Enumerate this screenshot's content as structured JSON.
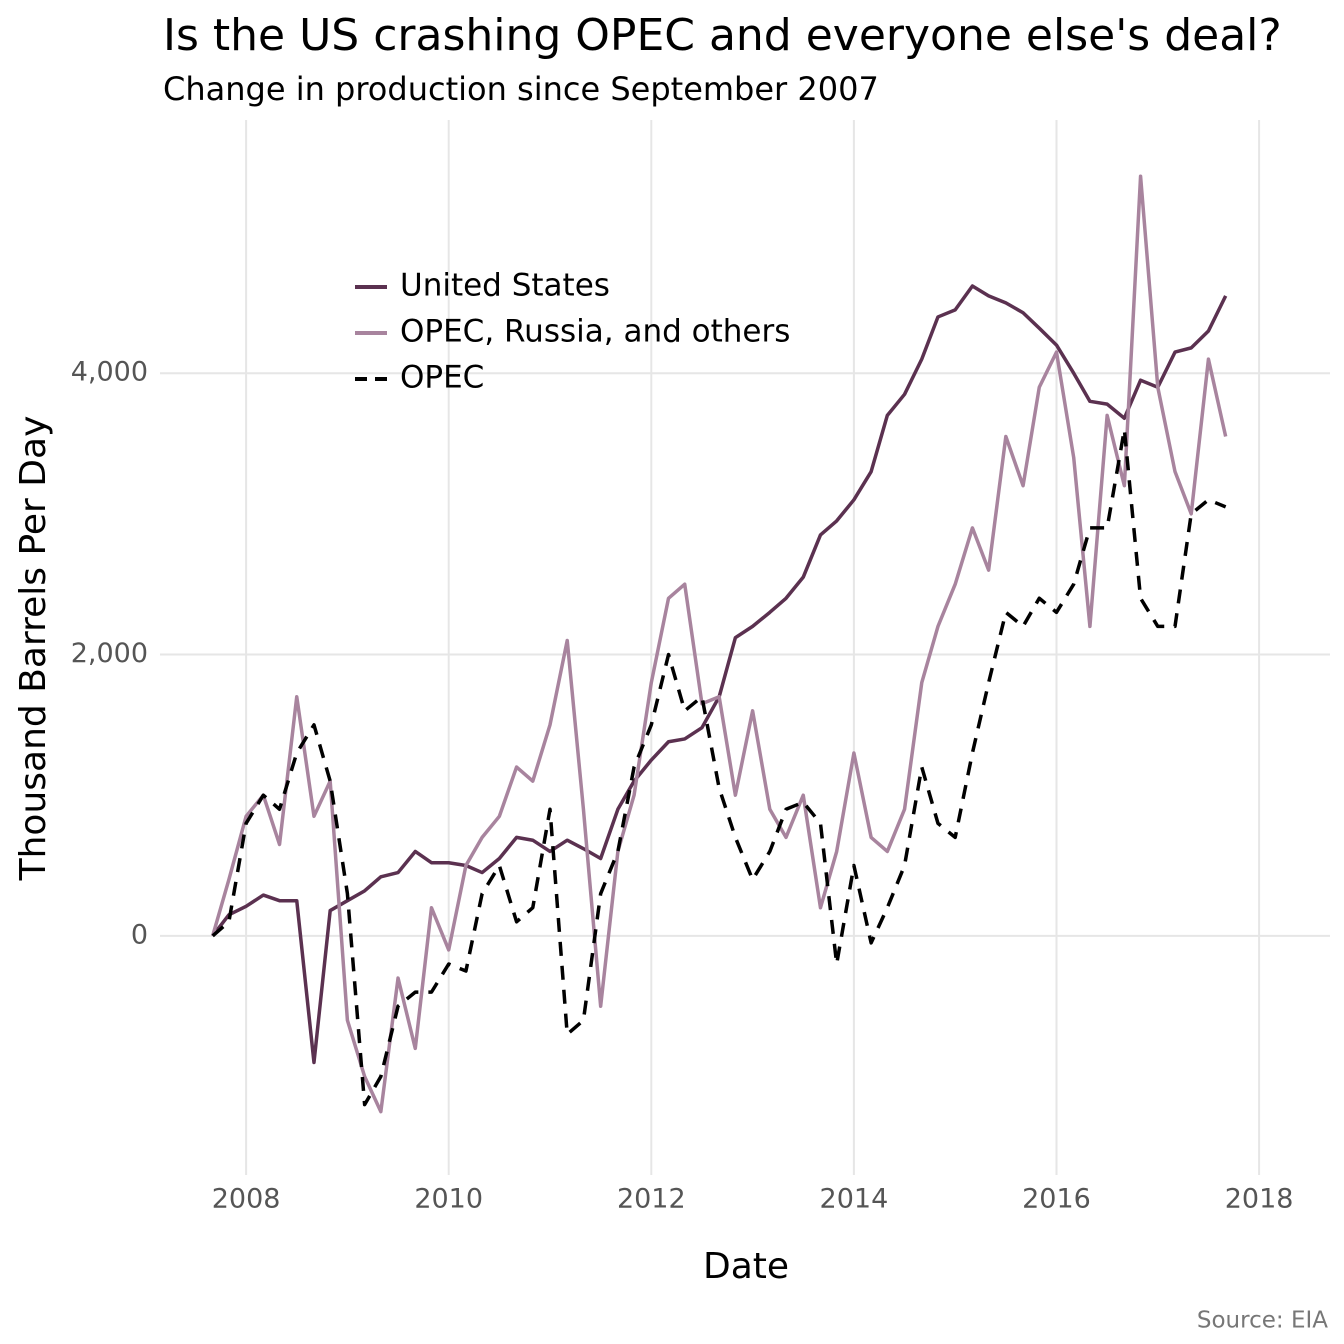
{
  "chart_data": {
    "type": "line",
    "title": "Is the US crashing OPEC and everyone else's deal?",
    "subtitle": "Change in production since September 2007",
    "x_label": "Date",
    "y_label": "Thousand Barrels Per Day",
    "source": "Source: EIA",
    "x": [
      2007.67,
      2007.83,
      2008.0,
      2008.17,
      2008.33,
      2008.5,
      2008.67,
      2008.83,
      2009.0,
      2009.17,
      2009.33,
      2009.5,
      2009.67,
      2009.83,
      2010.0,
      2010.17,
      2010.33,
      2010.5,
      2010.67,
      2010.83,
      2011.0,
      2011.17,
      2011.33,
      2011.5,
      2011.67,
      2011.83,
      2012.0,
      2012.17,
      2012.33,
      2012.5,
      2012.67,
      2012.83,
      2013.0,
      2013.17,
      2013.33,
      2013.5,
      2013.67,
      2013.83,
      2014.0,
      2014.17,
      2014.33,
      2014.5,
      2014.67,
      2014.83,
      2015.0,
      2015.17,
      2015.33,
      2015.5,
      2015.67,
      2015.83,
      2016.0,
      2016.17,
      2016.33,
      2016.5,
      2016.67,
      2016.83,
      2017.0,
      2017.17,
      2017.33,
      2017.5,
      2017.67
    ],
    "series": [
      {
        "name": "United States",
        "color": "#5b3150",
        "dash": false,
        "values": [
          0,
          150,
          210,
          290,
          250,
          250,
          -900,
          180,
          250,
          320,
          420,
          450,
          600,
          520,
          520,
          500,
          450,
          550,
          700,
          680,
          600,
          680,
          620,
          550,
          900,
          1100,
          1250,
          1380,
          1400,
          1480,
          1700,
          2120,
          2200,
          2300,
          2400,
          2550,
          2850,
          2950,
          3100,
          3300,
          3700,
          3850,
          4100,
          4400,
          4450,
          4620,
          4550,
          4500,
          4430,
          4320,
          4200,
          4000,
          3800,
          3780,
          3680,
          3950,
          3900,
          4150,
          4180,
          4300,
          4550
        ]
      },
      {
        "name": "OPEC, Russia, and others",
        "color": "#a8849e",
        "dash": false,
        "values": [
          0,
          400,
          850,
          1000,
          650,
          1700,
          850,
          1100,
          -600,
          -1000,
          -1250,
          -300,
          -800,
          200,
          -100,
          500,
          700,
          850,
          1200,
          1100,
          1500,
          2100,
          900,
          -500,
          600,
          1000,
          1800,
          2400,
          2500,
          1650,
          1700,
          1000,
          1600,
          900,
          700,
          1000,
          200,
          600,
          1300,
          700,
          600,
          900,
          1800,
          2200,
          2500,
          2900,
          2600,
          3550,
          3200,
          3900,
          4150,
          3400,
          2200,
          3700,
          3200,
          5400,
          3900,
          3300,
          3000,
          4100,
          3550
        ]
      },
      {
        "name": "OPEC",
        "color": "#000000",
        "dash": true,
        "values": [
          0,
          100,
          800,
          1000,
          900,
          1300,
          1500,
          1100,
          300,
          -1200,
          -1000,
          -500,
          -400,
          -400,
          -200,
          -250,
          300,
          500,
          100,
          200,
          900,
          -700,
          -600,
          300,
          600,
          1200,
          1500,
          2000,
          1600,
          1700,
          1050,
          700,
          400,
          600,
          900,
          950,
          800,
          -200,
          500,
          -50,
          200,
          500,
          1200,
          800,
          700,
          1300,
          1800,
          2300,
          2200,
          2400,
          2300,
          2500,
          2900,
          2900,
          3600,
          2400,
          2200,
          2200,
          3000,
          3100,
          3050
        ]
      }
    ],
    "xlim": [
      2007.15,
      2018.7
    ],
    "xticks": [
      2008,
      2010,
      2012,
      2014,
      2016,
      2018
    ],
    "ylim": [
      -1700,
      5800
    ],
    "yticks": [
      0,
      {
        "value": 2000,
        "label": "2,000"
      },
      {
        "value": 4000,
        "label": "4,000"
      }
    ],
    "grid": true,
    "legend": "top-left"
  }
}
